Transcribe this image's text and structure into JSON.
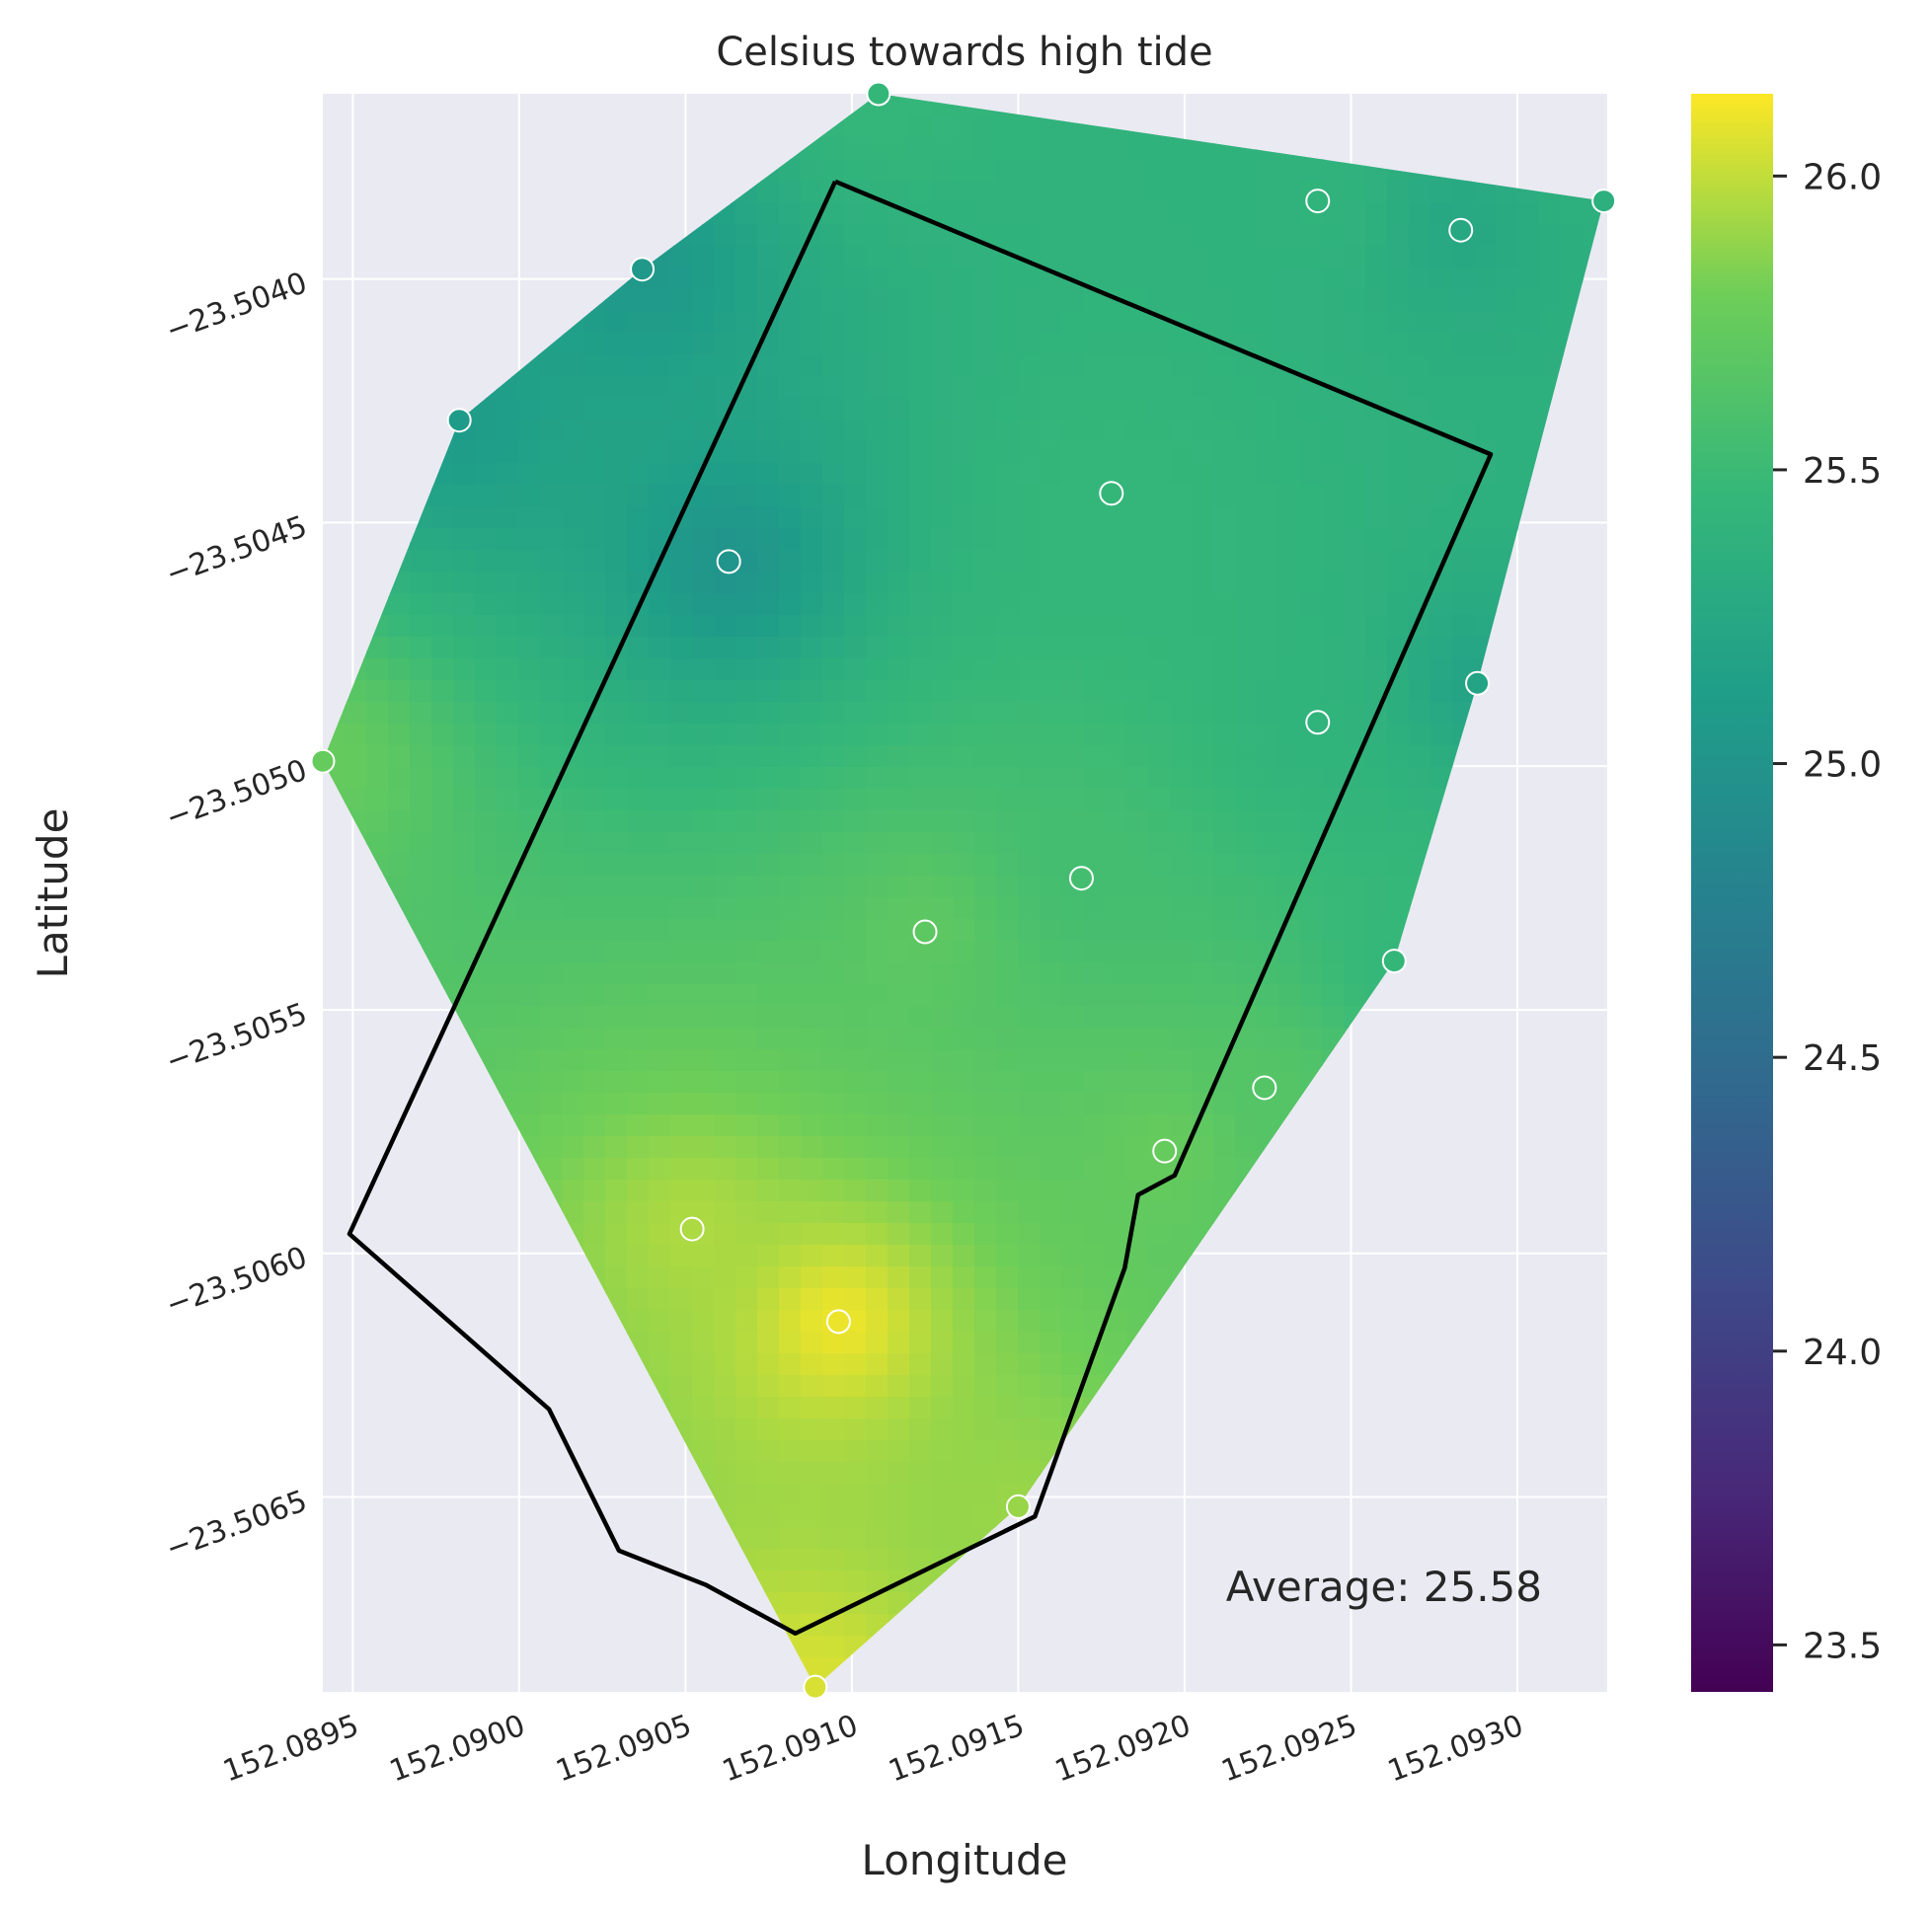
{
  "chart_data": {
    "type": "heatmap",
    "title": "Celsius towards high tide",
    "xlabel": "Longitude",
    "ylabel": "Latitude",
    "xlim": [
      152.08941,
      152.09327
    ],
    "ylim": [
      -23.5069,
      -23.50362
    ],
    "x_ticks": [
      152.0895,
      152.09,
      152.0905,
      152.091,
      152.0915,
      152.092,
      152.0925,
      152.093
    ],
    "x_tick_labels": [
      "152.0895",
      "152.0900",
      "152.0905",
      "152.0910",
      "152.0915",
      "152.0920",
      "152.0925",
      "152.0930"
    ],
    "y_ticks": [
      -23.504,
      -23.5045,
      -23.505,
      -23.5055,
      -23.506,
      -23.5065
    ],
    "y_tick_labels": [
      "−23.5040",
      "−23.5045",
      "−23.5050",
      "−23.5055",
      "−23.5060",
      "−23.5065"
    ],
    "grid": true,
    "colormap": "viridis",
    "colorbar": {
      "range": [
        23.42,
        26.14
      ],
      "ticks": [
        23.5,
        24.0,
        24.5,
        25.0,
        25.5,
        26.0
      ],
      "tick_labels": [
        "23.5",
        "24.0",
        "24.5",
        "25.0",
        "25.5",
        "26.0"
      ]
    },
    "annotation": "Average: 25.58",
    "points": [
      {
        "x": 152.09108,
        "y": -23.50362,
        "value": 25.45
      },
      {
        "x": 152.0924,
        "y": -23.50384,
        "value": 25.4
      },
      {
        "x": 152.09283,
        "y": -23.5039,
        "value": 25.25
      },
      {
        "x": 152.09326,
        "y": -23.50384,
        "value": 25.35
      },
      {
        "x": 152.09037,
        "y": -23.50398,
        "value": 25.05
      },
      {
        "x": 152.08982,
        "y": -23.50429,
        "value": 25.1
      },
      {
        "x": 152.09178,
        "y": -23.50444,
        "value": 25.45
      },
      {
        "x": 152.09063,
        "y": -23.50458,
        "value": 25.0
      },
      {
        "x": 152.09288,
        "y": -23.50483,
        "value": 25.2
      },
      {
        "x": 152.0924,
        "y": -23.50491,
        "value": 25.4
      },
      {
        "x": 152.08941,
        "y": -23.50499,
        "value": 25.75
      },
      {
        "x": 152.09169,
        "y": -23.50523,
        "value": 25.55
      },
      {
        "x": 152.09122,
        "y": -23.50534,
        "value": 25.7
      },
      {
        "x": 152.09263,
        "y": -23.5054,
        "value": 25.45
      },
      {
        "x": 152.09224,
        "y": -23.50566,
        "value": 25.65
      },
      {
        "x": 152.09194,
        "y": -23.50579,
        "value": 25.75
      },
      {
        "x": 152.09052,
        "y": -23.50595,
        "value": 25.95
      },
      {
        "x": 152.09096,
        "y": -23.50614,
        "value": 26.1
      },
      {
        "x": 152.0915,
        "y": -23.50652,
        "value": 25.9
      },
      {
        "x": 152.09089,
        "y": -23.50689,
        "value": 26.05
      }
    ],
    "boundary": [
      {
        "x": 152.09095,
        "y": -23.5038
      },
      {
        "x": 152.09292,
        "y": -23.50436
      },
      {
        "x": 152.09197,
        "y": -23.50584
      },
      {
        "x": 152.09186,
        "y": -23.50588
      },
      {
        "x": 152.09182,
        "y": -23.50603
      },
      {
        "x": 152.09155,
        "y": -23.50654
      },
      {
        "x": 152.09083,
        "y": -23.50678
      },
      {
        "x": 152.09056,
        "y": -23.50668
      },
      {
        "x": 152.0903,
        "y": -23.50661
      },
      {
        "x": 152.09009,
        "y": -23.50632
      },
      {
        "x": 152.08949,
        "y": -23.50596
      },
      {
        "x": 152.09095,
        "y": -23.5038
      }
    ]
  }
}
